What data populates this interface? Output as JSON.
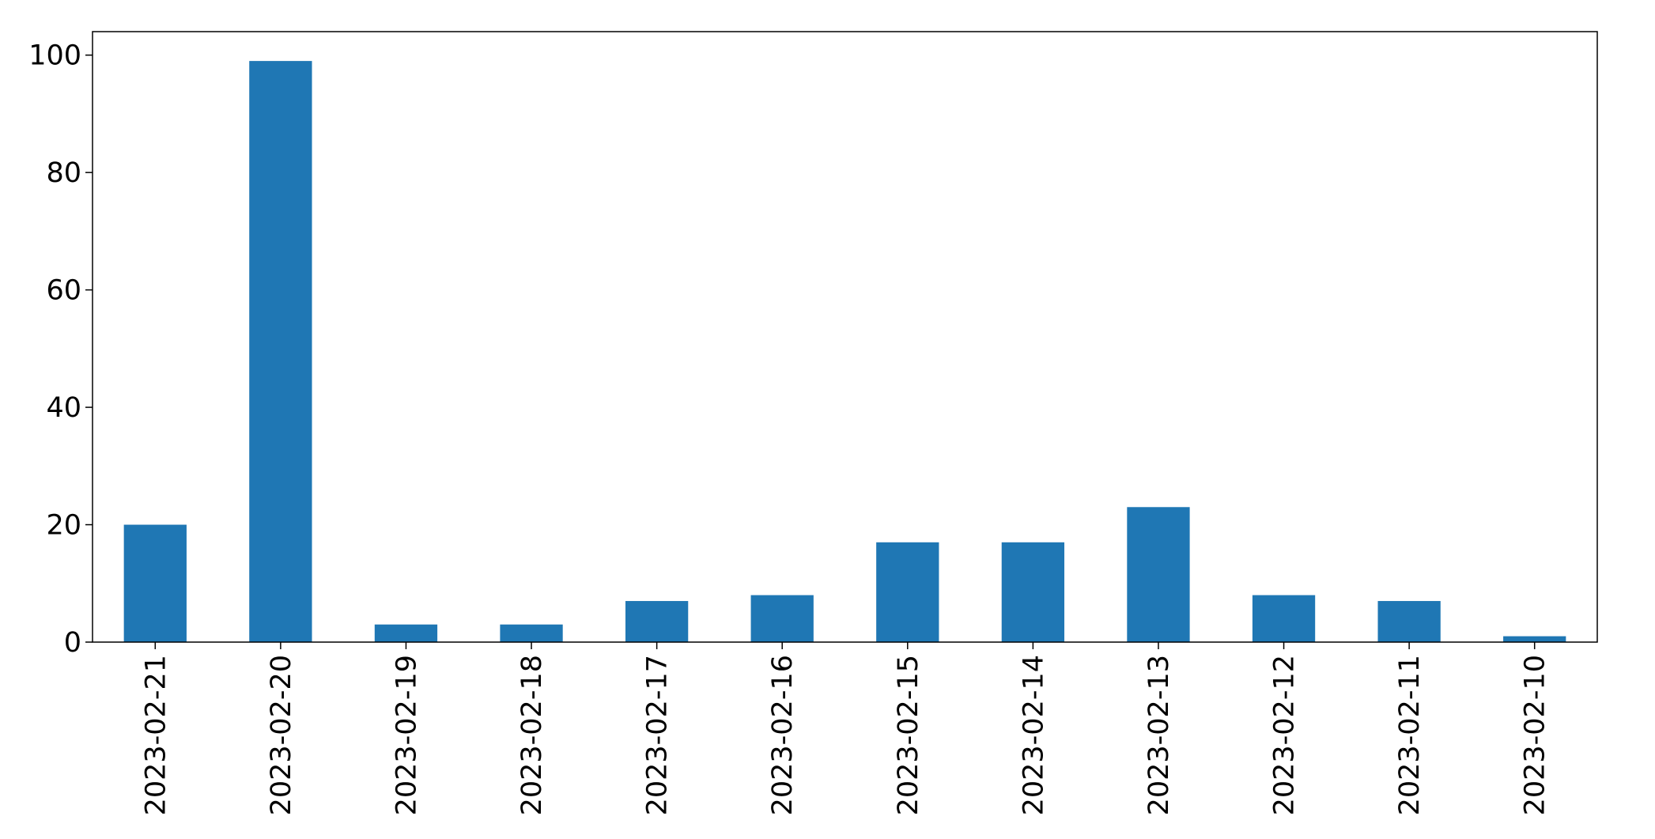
{
  "chart_data": {
    "type": "bar",
    "title": "",
    "xlabel": "",
    "ylabel": "",
    "categories": [
      "2023-02-21",
      "2023-02-20",
      "2023-02-19",
      "2023-02-18",
      "2023-02-17",
      "2023-02-16",
      "2023-02-15",
      "2023-02-14",
      "2023-02-13",
      "2023-02-12",
      "2023-02-11",
      "2023-02-10"
    ],
    "values": [
      20,
      99,
      3,
      3,
      7,
      8,
      17,
      17,
      23,
      8,
      7,
      1
    ],
    "ylim": [
      0,
      104
    ],
    "yticks": [
      0,
      20,
      40,
      60,
      80,
      100
    ],
    "bar_color": "#1f77b4",
    "grid": false,
    "legend": "none"
  }
}
